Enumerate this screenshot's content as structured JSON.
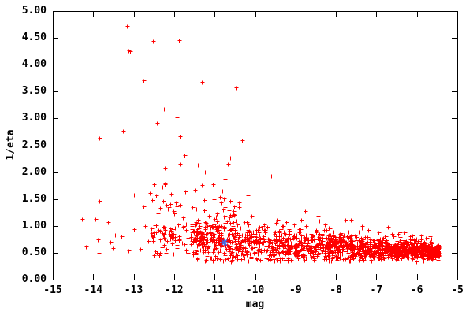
{
  "chart_data": {
    "type": "scatter",
    "title": "",
    "xlabel": "mag",
    "ylabel": "1/eta",
    "xlim": [
      -15,
      -5
    ],
    "ylim": [
      0,
      5
    ],
    "grid": false,
    "legend": "none",
    "xtick_values": [
      -15,
      -14,
      -13,
      -12,
      -11,
      -10,
      -9,
      -8,
      -7,
      -6,
      -5
    ],
    "xtick_labels": [
      "-15",
      "-14",
      "-13",
      "-12",
      "-11",
      "-10",
      "-9",
      "-8",
      "-7",
      "-6",
      "-5"
    ],
    "ytick_values": [
      0,
      0.5,
      1,
      1.5,
      2,
      2.5,
      3,
      3.5,
      4,
      4.5,
      5
    ],
    "ytick_labels": [
      "0.00",
      "0.50",
      "1.00",
      "1.50",
      "2.00",
      "2.50",
      "3.00",
      "3.50",
      "4.00",
      "4.50",
      "5.00"
    ],
    "series": [
      {
        "name": "red-scatter",
        "marker": "plus",
        "color": "#ff0000",
        "points_explicit": [
          [
            -13.17,
            4.72
          ],
          [
            -13.13,
            4.27
          ],
          [
            -13.08,
            4.25
          ],
          [
            -12.52,
            4.44
          ],
          [
            -11.88,
            4.46
          ],
          [
            -12.76,
            3.71
          ],
          [
            -11.32,
            3.68
          ],
          [
            -10.47,
            3.58
          ],
          [
            -12.25,
            3.18
          ],
          [
            -11.93,
            3.02
          ],
          [
            -12.43,
            2.92
          ],
          [
            -13.27,
            2.77
          ],
          [
            -13.85,
            2.64
          ],
          [
            -11.86,
            2.67
          ],
          [
            -10.32,
            2.6
          ],
          [
            -11.74,
            2.32
          ],
          [
            -10.61,
            2.27
          ],
          [
            -11.86,
            2.16
          ],
          [
            -11.41,
            2.14
          ],
          [
            -10.67,
            2.16
          ],
          [
            -12.23,
            2.08
          ],
          [
            -11.24,
            2.01
          ],
          [
            -10.75,
            1.88
          ],
          [
            -9.6,
            1.94
          ],
          [
            -12.29,
            1.73
          ],
          [
            -12.99,
            1.58
          ],
          [
            -12.45,
            1.57
          ],
          [
            -10.19,
            1.57
          ],
          [
            -11.03,
            1.5
          ],
          [
            -10.85,
            1.44
          ],
          [
            -12.76,
            1.36
          ],
          [
            -12.15,
            1.32
          ],
          [
            -11.93,
            1.36
          ],
          [
            -10.39,
            1.35
          ],
          [
            -10.09,
            1.19
          ],
          [
            -13.85,
            1.47
          ],
          [
            -14.28,
            1.13
          ],
          [
            -13.95,
            1.13
          ],
          [
            -13.63,
            1.07
          ],
          [
            -14.18,
            0.62
          ],
          [
            -13.89,
            0.75
          ],
          [
            -13.87,
            0.5
          ],
          [
            -13.58,
            0.7
          ],
          [
            -13.52,
            0.59
          ],
          [
            -13.46,
            0.84
          ],
          [
            -13.31,
            0.81
          ],
          [
            -13.13,
            0.54
          ],
          [
            -12.99,
            0.94
          ],
          [
            -12.83,
            0.57
          ],
          [
            -12.64,
            0.72
          ],
          [
            -12.55,
            0.8
          ],
          [
            -12.71,
            1.0
          ],
          [
            -12.3,
            0.87
          ],
          [
            -12.36,
            0.45
          ],
          [
            -8.77,
            1.27
          ],
          [
            -8.86,
            1.11
          ],
          [
            -7.77,
            1.11
          ],
          [
            -9.48,
            1.06
          ],
          [
            -9.31,
            1.0
          ],
          [
            -6.72,
            0.98
          ],
          [
            -6.31,
            0.88
          ],
          [
            -5.9,
            0.82
          ],
          [
            -8.3,
            0.93
          ],
          [
            -7.2,
            0.92
          ]
        ],
        "cloud": {
          "seed": 7,
          "n_band": 1600,
          "band_x_right": -5.45,
          "band_x_span": 6.1,
          "band_x_pow": 1.35,
          "band_center_left": 0.72,
          "band_center_right": 0.53,
          "band_spread_left": 0.225,
          "band_spread_right": 0.065,
          "y_min": 0.34,
          "y_cap": 2.35,
          "tail_frac": 0.07,
          "tail_scale": 0.45,
          "n_mid": 110,
          "mid_x_min": -12.6,
          "mid_x_range": 2.2,
          "mid_y_base": 0.72,
          "mid_y_scale": 1.15,
          "n_left_low": 45,
          "left_low_x_min": -12.55,
          "left_low_x_range": 1.05,
          "left_low_y_min": 0.45,
          "left_low_y_range": 0.55
        }
      },
      {
        "name": "highlight-star",
        "marker": "star",
        "color": "#4169e1",
        "points": [
          [
            -10.76,
            0.69
          ]
        ]
      }
    ],
    "colors": {
      "background": "#ffffff",
      "frame": "#000000",
      "text": "#000000",
      "points": "#ff0000",
      "highlight": "#4169e1"
    }
  }
}
